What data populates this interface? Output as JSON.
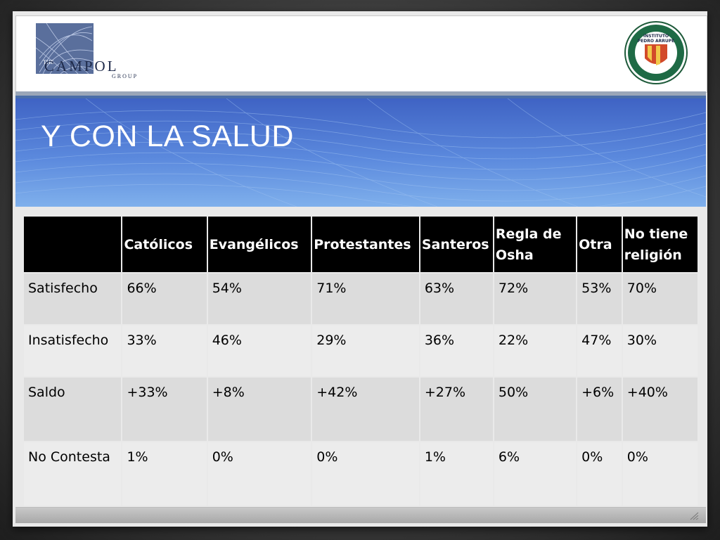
{
  "logos": {
    "left_text": "CAMPOL",
    "left_top": "THE",
    "left_bottom": "GROUP",
    "right_line1": "INSTITUTO",
    "right_line2": "PEDRO ARRUPE"
  },
  "title": "Y CON LA SALUD",
  "table": {
    "headers": [
      "",
      "Católicos",
      "Evangélicos",
      "Protestantes",
      "Santeros",
      "Regla de Osha",
      "Otra",
      "No tiene religión"
    ],
    "rows": [
      [
        "Satisfecho",
        "66%",
        "54%",
        "71%",
        "63%",
        "72%",
        "53%",
        "70%"
      ],
      [
        "Insatisfecho",
        "33%",
        "46%",
        "29%",
        "36%",
        "22%",
        "47%",
        "30%"
      ],
      [
        "Saldo",
        "+33%",
        "+8%",
        "+42%",
        "+27%",
        "50%",
        "+6%",
        "+40%"
      ],
      [
        "No Contesta",
        "1%",
        "0%",
        "0%",
        "1%",
        "6%",
        "0%",
        "0%"
      ]
    ]
  },
  "colors": {
    "header_bg": "#000000",
    "row_odd": "#dcdcdc",
    "row_even": "#ececec",
    "title_band": "#4f7ad4"
  }
}
